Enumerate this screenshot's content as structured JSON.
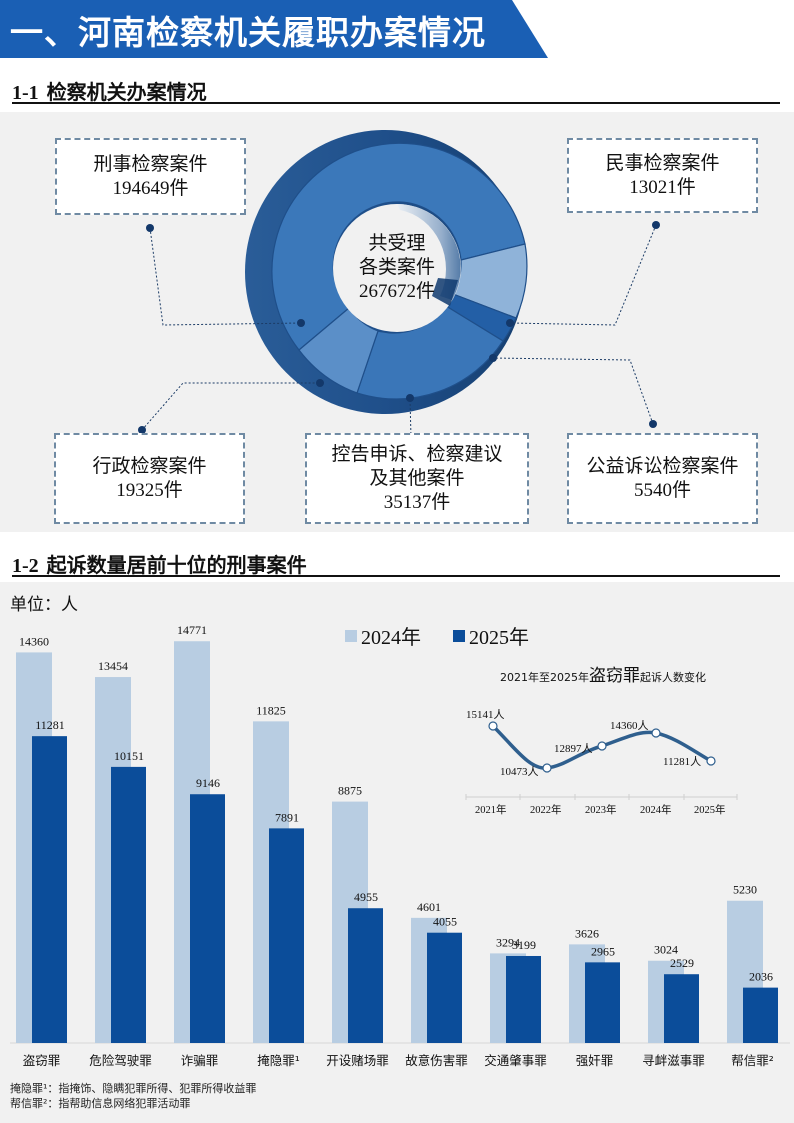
{
  "banner": {
    "title": "一、河南检察机关履职办案情况",
    "color": "#1a5fb4"
  },
  "section1": {
    "num": "1-1",
    "title": "检察机关办案情况"
  },
  "section2": {
    "num": "1-2",
    "title": "起诉数量居前十位的刑事案件"
  },
  "donut": {
    "center_line1": "共受理",
    "center_line2": "各类案件",
    "center_total": "267672件",
    "callouts": [
      {
        "label": "刑事检察案件",
        "value": "194649件"
      },
      {
        "label": "民事检察案件",
        "value": "13021件"
      },
      {
        "label": "行政检察案件",
        "value": "19325件"
      },
      {
        "label_line1": "控告申诉、检察建议",
        "label_line2": "及其他案件",
        "value": "35137件"
      },
      {
        "label": "公益诉讼检察案件",
        "value": "5540件"
      }
    ]
  },
  "bar_chart": {
    "unit": "单位：人",
    "legend_2024": "2024年",
    "legend_2025": "2025年",
    "color_2024": "#b8cde2",
    "color_2025": "#0b4d9a",
    "categories": [
      "盗窃罪",
      "危险驾驶罪",
      "诈骗罪",
      "掩隐罪¹",
      "开设赌场罪",
      "故意伤害罪",
      "交通肇事罪",
      "强奸罪",
      "寻衅滋事罪",
      "帮信罪²"
    ],
    "v2024": [
      "14360",
      "13454",
      "14771",
      "11825",
      "8875",
      "4601",
      "3294",
      "3626",
      "3024",
      "5230"
    ],
    "v2025": [
      "11281",
      "10151",
      "9146",
      "7891",
      "4955",
      "4055",
      "3199",
      "2965",
      "2529",
      "2036"
    ]
  },
  "inset": {
    "title_prefix": "2021年至2025年",
    "title_em": "盗窃罪",
    "title_suffix": "起诉人数变化",
    "years": [
      "2021年",
      "2022年",
      "2023年",
      "2024年",
      "2025年"
    ],
    "labels": [
      "15141人",
      "10473人",
      "12897人",
      "14360人",
      "11281人"
    ]
  },
  "footnotes": {
    "note1": "掩隐罪¹：指掩饰、隐瞒犯罪所得、犯罪所得收益罪",
    "note2": "帮信罪²：指帮助信息网络犯罪活动罪"
  },
  "chart_data": [
    {
      "type": "pie",
      "title": "检察机关办案情况",
      "total": 267672,
      "categories": [
        "刑事检察案件",
        "民事检察案件",
        "公益诉讼检察案件",
        "控告申诉、检察建议及其他案件",
        "行政检察案件"
      ],
      "values": [
        194649,
        13021,
        5540,
        35137,
        19325
      ]
    },
    {
      "type": "bar",
      "title": "起诉数量居前十位的刑事案件",
      "ylabel": "单位：人",
      "categories": [
        "盗窃罪",
        "危险驾驶罪",
        "诈骗罪",
        "掩隐罪",
        "开设赌场罪",
        "故意伤害罪",
        "交通肇事罪",
        "强奸罪",
        "寻衅滋事罪",
        "帮信罪"
      ],
      "series": [
        {
          "name": "2024年",
          "values": [
            14360,
            13454,
            14771,
            11825,
            8875,
            4601,
            3294,
            3626,
            3024,
            5230
          ]
        },
        {
          "name": "2025年",
          "values": [
            11281,
            10151,
            9146,
            7891,
            4955,
            4055,
            3199,
            2965,
            2529,
            2036
          ]
        }
      ],
      "legend_position": "top"
    },
    {
      "type": "line",
      "title": "2021年至2025年盗窃罪起诉人数变化",
      "x": [
        "2021年",
        "2022年",
        "2023年",
        "2024年",
        "2025年"
      ],
      "series": [
        {
          "name": "盗窃罪起诉人数",
          "values": [
            15141,
            10473,
            12897,
            14360,
            11281
          ]
        }
      ]
    }
  ]
}
